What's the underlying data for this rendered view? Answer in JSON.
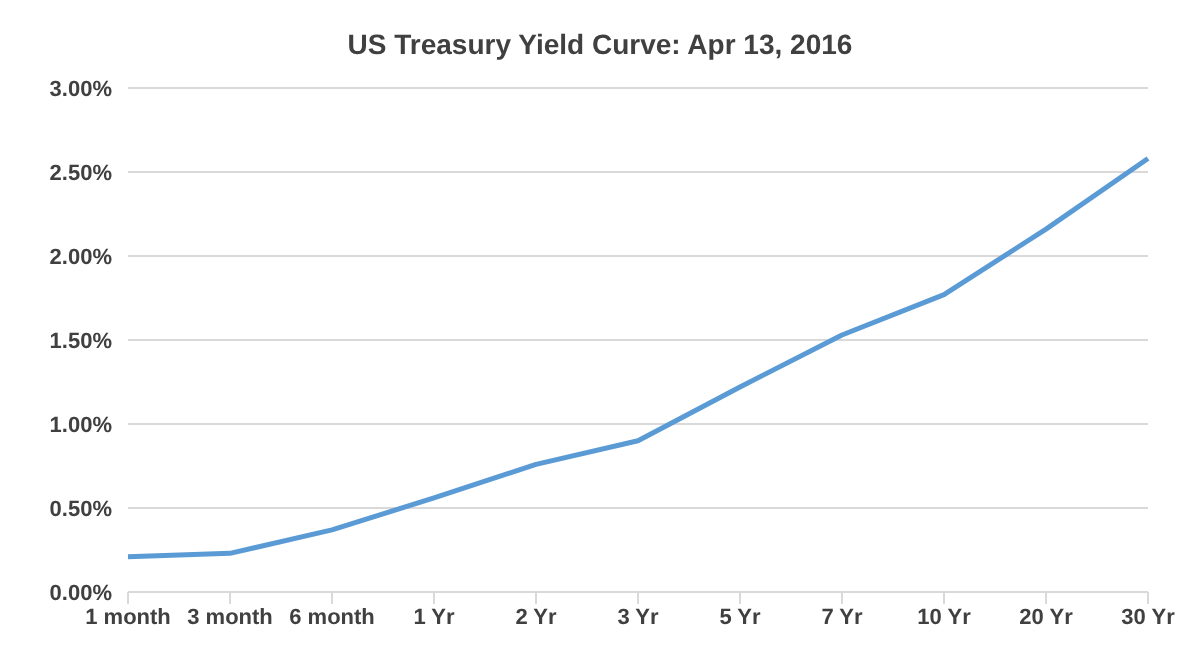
{
  "chart_data": {
    "type": "line",
    "title": "US Treasury Yield Curve: Apr 13, 2016",
    "categories": [
      "1 month",
      "3 month",
      "6 month",
      "1 Yr",
      "2 Yr",
      "3 Yr",
      "5 Yr",
      "7 Yr",
      "10 Yr",
      "20 Yr",
      "30 Yr"
    ],
    "series": [
      {
        "color": "#5b9bd5",
        "values": [
          0.21,
          0.23,
          0.37,
          0.56,
          0.76,
          0.9,
          1.22,
          1.53,
          1.77,
          2.16,
          2.58
        ]
      }
    ],
    "ylim": [
      0,
      3
    ],
    "yticks": [
      {
        "value": 0,
        "label": "0.00%"
      },
      {
        "value": 0.5,
        "label": "0.50%"
      },
      {
        "value": 1,
        "label": "1.00%"
      },
      {
        "value": 1.5,
        "label": "1.50%"
      },
      {
        "value": 2,
        "label": "2.00%"
      },
      {
        "value": 2.5,
        "label": "2.50%"
      },
      {
        "value": 3,
        "label": "3.00%"
      }
    ],
    "grid": "y",
    "legend": false,
    "marker": "none",
    "line_style": "solid"
  }
}
